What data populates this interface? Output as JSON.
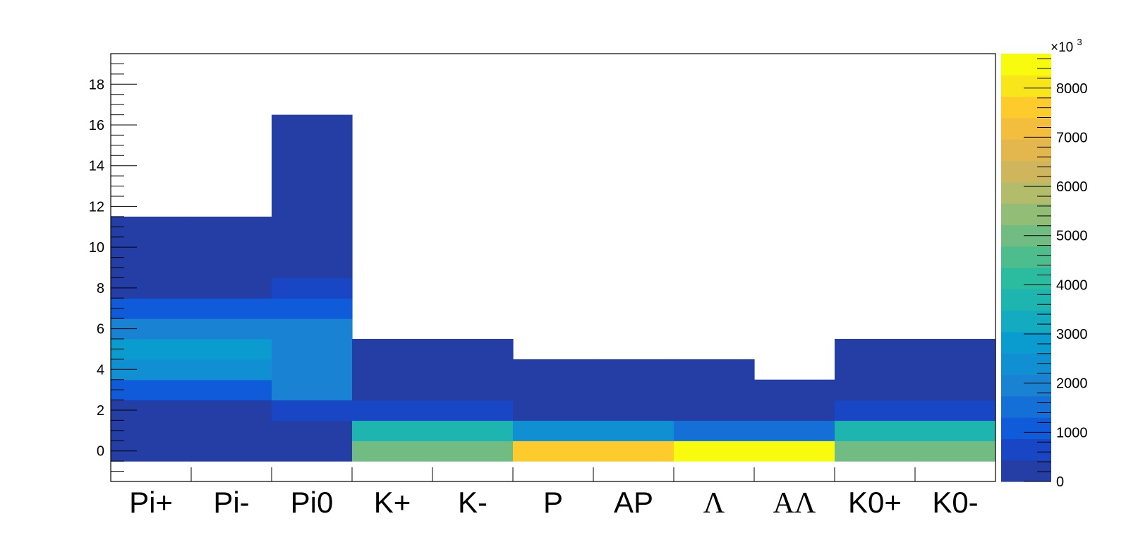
{
  "chart_data": {
    "type": "heatmap",
    "categories": [
      "Pi+",
      "Pi-",
      "Pi0",
      "K+",
      "K-",
      "P",
      "AP",
      "Λ",
      "AΛ",
      "K0+",
      "K0-"
    ],
    "y_bins": [
      0,
      1,
      2,
      3,
      4,
      5,
      6,
      7,
      8,
      9,
      10,
      11,
      12,
      13,
      14,
      15,
      16
    ],
    "y_tick_labels": [
      "0",
      "2",
      "4",
      "6",
      "8",
      "10",
      "12",
      "14",
      "16",
      "18"
    ],
    "ylim": [
      -1.5,
      19.5
    ],
    "z_tick_labels": [
      "0",
      "1000",
      "2000",
      "3000",
      "4000",
      "5000",
      "6000",
      "7000",
      "8000"
    ],
    "z_exponent_label": "×10",
    "z_exponent_power": "3",
    "zlim": [
      0,
      8700
    ],
    "values": [
      [
        300,
        300,
        300,
        1100,
        2200,
        3000,
        2000,
        1100,
        300,
        300,
        300,
        300,
        0,
        0,
        0,
        0,
        0
      ],
      [
        300,
        300,
        300,
        1100,
        2200,
        3000,
        2000,
        1100,
        300,
        300,
        300,
        300,
        0,
        0,
        0,
        0,
        0
      ],
      [
        300,
        300,
        800,
        1800,
        1800,
        1900,
        1800,
        1100,
        800,
        300,
        300,
        300,
        300,
        300,
        300,
        300,
        300
      ],
      [
        5200,
        3900,
        700,
        300,
        300,
        300,
        0,
        0,
        0,
        0,
        0,
        0,
        0,
        0,
        0,
        0,
        0
      ],
      [
        5200,
        3900,
        700,
        300,
        300,
        300,
        0,
        0,
        0,
        0,
        0,
        0,
        0,
        0,
        0,
        0,
        0
      ],
      [
        7500,
        2500,
        300,
        300,
        300,
        0,
        0,
        0,
        0,
        0,
        0,
        0,
        0,
        0,
        0,
        0,
        0
      ],
      [
        7500,
        2500,
        300,
        300,
        300,
        0,
        0,
        0,
        0,
        0,
        0,
        0,
        0,
        0,
        0,
        0,
        0
      ],
      [
        8600,
        1600,
        300,
        300,
        300,
        0,
        0,
        0,
        0,
        0,
        0,
        0,
        0,
        0,
        0,
        0,
        0
      ],
      [
        8600,
        1600,
        300,
        300,
        0,
        0,
        0,
        0,
        0,
        0,
        0,
        0,
        0,
        0,
        0,
        0,
        0
      ],
      [
        5200,
        3900,
        700,
        300,
        300,
        300,
        0,
        0,
        0,
        0,
        0,
        0,
        0,
        0,
        0,
        0,
        0
      ],
      [
        5200,
        3900,
        700,
        300,
        300,
        300,
        0,
        0,
        0,
        0,
        0,
        0,
        0,
        0,
        0,
        0,
        0
      ]
    ],
    "palette": [
      "#253ea6",
      "#1946c4",
      "#105bd9",
      "#1470d6",
      "#1a82d2",
      "#108fd3",
      "#0a9ccf",
      "#14aac0",
      "#1eb4af",
      "#2bbb9e",
      "#4ebd8e",
      "#70bc82",
      "#92bd77",
      "#b3bc6b",
      "#cfb65d",
      "#e3b74e",
      "#f3bd3d",
      "#fdcb2c",
      "#f9e61a",
      "#f8fb0e"
    ],
    "grid": false,
    "title": "",
    "xlabel": "",
    "ylabel": ""
  }
}
